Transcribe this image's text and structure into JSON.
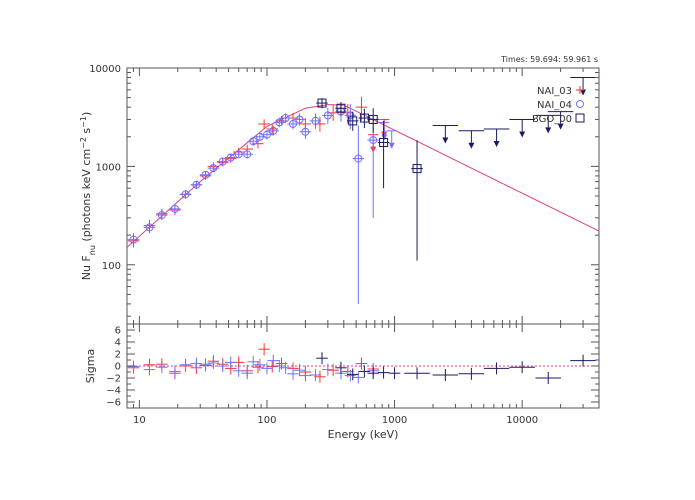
{
  "chart_data": [
    {
      "type": "scatter",
      "role": "spectrum",
      "annotation": "Times: 59.694: 59.961 s",
      "ylabel": "Nu F",
      "ylabel_sub": "nu",
      "ylabel_units": "(photons keV cm",
      "ylabel_exp1": "−2",
      "ylabel_mid": " s",
      "ylabel_exp2": "−1",
      "ylabel_end": ")",
      "xscale": "log",
      "yscale": "log",
      "xlim": [
        8,
        40000
      ],
      "ylim": [
        25,
        10000
      ],
      "x_ticks": [
        {
          "value": 10,
          "label": "10"
        },
        {
          "value": 100,
          "label": "100"
        },
        {
          "value": 1000,
          "label": "1000"
        },
        {
          "value": 10000,
          "label": "10000"
        }
      ],
      "y_ticks": [
        {
          "value": 100,
          "label": "100"
        },
        {
          "value": 1000,
          "label": "1000"
        },
        {
          "value": 10000,
          "label": "10000"
        }
      ],
      "legend_position": "top-right",
      "colors": {
        "NAI_03": "#ff3333",
        "NAI_04": "#6f6fff",
        "BGO_00": "#1a1a66",
        "model": "#e0407a"
      },
      "model": {
        "x": [
          8,
          30,
          100,
          200,
          300,
          400,
          40000
        ],
        "y": [
          150,
          700,
          2550,
          3900,
          4250,
          4200,
          220
        ]
      },
      "series": [
        {
          "name": "NAI_03",
          "marker": "plus",
          "points": [
            {
              "x": 9,
              "y": 175,
              "lo": 150,
              "hi": 205
            },
            {
              "x": 12,
              "y": 250,
              "lo": 215,
              "hi": 285
            },
            {
              "x": 15,
              "y": 330,
              "lo": 290,
              "hi": 370
            },
            {
              "x": 19,
              "y": 360,
              "lo": 320,
              "hi": 410
            },
            {
              "x": 23,
              "y": 520,
              "lo": 470,
              "hi": 570
            },
            {
              "x": 28,
              "y": 650,
              "lo": 590,
              "hi": 710
            },
            {
              "x": 33,
              "y": 800,
              "lo": 730,
              "hi": 880
            },
            {
              "x": 38,
              "y": 1000,
              "lo": 910,
              "hi": 1100
            },
            {
              "x": 45,
              "y": 1100,
              "lo": 1000,
              "hi": 1210
            },
            {
              "x": 52,
              "y": 1200,
              "lo": 1090,
              "hi": 1320
            },
            {
              "x": 60,
              "y": 1400,
              "lo": 1270,
              "hi": 1540
            },
            {
              "x": 70,
              "y": 1500,
              "lo": 1350,
              "hi": 1660
            },
            {
              "x": 85,
              "y": 1700,
              "lo": 1520,
              "hi": 1900
            },
            {
              "x": 95,
              "y": 2700,
              "lo": 2400,
              "hi": 3000
            },
            {
              "x": 110,
              "y": 2400,
              "lo": 2150,
              "hi": 2680
            },
            {
              "x": 130,
              "y": 2900,
              "lo": 2600,
              "hi": 3250
            },
            {
              "x": 160,
              "y": 3100,
              "lo": 2750,
              "hi": 3500
            },
            {
              "x": 200,
              "y": 2700,
              "lo": 2300,
              "hi": 3100
            },
            {
              "x": 260,
              "y": 2700,
              "lo": 2250,
              "hi": 3200
            },
            {
              "x": 330,
              "y": 3500,
              "lo": 2900,
              "hi": 4200
            },
            {
              "x": 430,
              "y": 3500,
              "lo": 2700,
              "hi": 4300
            },
            {
              "x": 550,
              "y": 4000,
              "lo": 2900,
              "hi": 5100
            }
          ],
          "upper_limits": [
            {
              "x": 680,
              "y": 2100
            },
            {
              "x": 830,
              "y": 3000
            }
          ]
        },
        {
          "name": "NAI_04",
          "marker": "circle",
          "points": [
            {
              "x": 9,
              "y": 180,
              "lo": 155,
              "hi": 210
            },
            {
              "x": 12,
              "y": 240,
              "lo": 210,
              "hi": 275
            },
            {
              "x": 15,
              "y": 320,
              "lo": 285,
              "hi": 360
            },
            {
              "x": 19,
              "y": 370,
              "lo": 330,
              "hi": 415
            },
            {
              "x": 23,
              "y": 520,
              "lo": 470,
              "hi": 575
            },
            {
              "x": 28,
              "y": 650,
              "lo": 590,
              "hi": 715
            },
            {
              "x": 33,
              "y": 820,
              "lo": 745,
              "hi": 900
            },
            {
              "x": 38,
              "y": 960,
              "lo": 875,
              "hi": 1050
            },
            {
              "x": 45,
              "y": 1120,
              "lo": 1020,
              "hi": 1230
            },
            {
              "x": 52,
              "y": 1230,
              "lo": 1120,
              "hi": 1350
            },
            {
              "x": 60,
              "y": 1330,
              "lo": 1210,
              "hi": 1460
            },
            {
              "x": 70,
              "y": 1330,
              "lo": 1200,
              "hi": 1470
            },
            {
              "x": 78,
              "y": 1800,
              "lo": 1620,
              "hi": 2000
            },
            {
              "x": 88,
              "y": 2000,
              "lo": 1800,
              "hi": 2220
            },
            {
              "x": 100,
              "y": 2100,
              "lo": 1880,
              "hi": 2340
            },
            {
              "x": 112,
              "y": 2300,
              "lo": 2050,
              "hi": 2580
            },
            {
              "x": 125,
              "y": 2800,
              "lo": 2500,
              "hi": 3120
            },
            {
              "x": 140,
              "y": 3100,
              "lo": 2750,
              "hi": 3480
            },
            {
              "x": 160,
              "y": 2700,
              "lo": 2380,
              "hi": 3050
            },
            {
              "x": 180,
              "y": 3000,
              "lo": 2600,
              "hi": 3450
            },
            {
              "x": 200,
              "y": 2250,
              "lo": 1900,
              "hi": 2650
            },
            {
              "x": 240,
              "y": 2900,
              "lo": 2400,
              "hi": 3450
            },
            {
              "x": 300,
              "y": 3300,
              "lo": 2700,
              "hi": 3950
            },
            {
              "x": 380,
              "y": 3600,
              "lo": 2850,
              "hi": 4450
            },
            {
              "x": 450,
              "y": 3300,
              "lo": 2400,
              "hi": 4300
            },
            {
              "x": 520,
              "y": 1200,
              "lo": 40,
              "hi": 2600
            },
            {
              "x": 680,
              "y": 1850,
              "lo": 300,
              "hi": 3300
            }
          ],
          "upper_limits": [
            {
              "x": 830,
              "y": 2800
            },
            {
              "x": 950,
              "y": 2300
            }
          ]
        },
        {
          "name": "BGO_00",
          "marker": "square",
          "points": [
            {
              "x": 270,
              "y": 4400,
              "lo": 3900,
              "hi": 4950
            },
            {
              "x": 380,
              "y": 3900,
              "lo": 3300,
              "hi": 4500
            },
            {
              "x": 470,
              "y": 2900,
              "lo": 2300,
              "hi": 3600
            },
            {
              "x": 580,
              "y": 3100,
              "lo": 2450,
              "hi": 3850
            },
            {
              "x": 680,
              "y": 3000,
              "lo": 2200,
              "hi": 3900
            },
            {
              "x": 820,
              "y": 1750,
              "lo": 600,
              "hi": 2900
            },
            {
              "x": 1500,
              "y": 950,
              "lo": 110,
              "hi": 1850
            }
          ],
          "upper_limits": [
            {
              "x": 2500,
              "y": 2600
            },
            {
              "x": 4000,
              "y": 2300
            },
            {
              "x": 6300,
              "y": 2400
            },
            {
              "x": 10000,
              "y": 3000
            },
            {
              "x": 16000,
              "y": 3300
            },
            {
              "x": 20000,
              "y": 3600
            },
            {
              "x": 30000,
              "y": 8000
            }
          ]
        }
      ]
    },
    {
      "type": "scatter",
      "role": "residuals",
      "xlabel": "Energy (keV)",
      "ylabel": "Sigma",
      "xscale": "log",
      "xlim": [
        8,
        40000
      ],
      "ylim": [
        -7,
        7
      ],
      "x_ticks": [
        {
          "value": 10,
          "label": "10"
        },
        {
          "value": 100,
          "label": "100"
        },
        {
          "value": 1000,
          "label": "1000"
        },
        {
          "value": 10000,
          "label": "10000"
        }
      ],
      "y_ticks": [
        {
          "value": -6,
          "label": "−6"
        },
        {
          "value": -4,
          "label": "−4"
        },
        {
          "value": -2,
          "label": "−2"
        },
        {
          "value": 0,
          "label": "0"
        },
        {
          "value": 2,
          "label": "2"
        },
        {
          "value": 4,
          "label": "4"
        },
        {
          "value": 6,
          "label": "6"
        }
      ],
      "series": [
        {
          "name": "NAI_03",
          "points": [
            {
              "x": 9,
              "y": -0.3
            },
            {
              "x": 12,
              "y": 0.2
            },
            {
              "x": 15,
              "y": 0.3
            },
            {
              "x": 19,
              "y": -1.2
            },
            {
              "x": 23,
              "y": 0.0
            },
            {
              "x": 28,
              "y": -0.3
            },
            {
              "x": 33,
              "y": 0.1
            },
            {
              "x": 38,
              "y": 0.8
            },
            {
              "x": 45,
              "y": 0.3
            },
            {
              "x": 52,
              "y": -0.4
            },
            {
              "x": 60,
              "y": 0.6
            },
            {
              "x": 70,
              "y": -0.8
            },
            {
              "x": 85,
              "y": -0.2
            },
            {
              "x": 95,
              "y": 2.8
            },
            {
              "x": 110,
              "y": -0.1
            },
            {
              "x": 130,
              "y": 0.4
            },
            {
              "x": 160,
              "y": -0.4
            },
            {
              "x": 200,
              "y": -1.0
            },
            {
              "x": 260,
              "y": -1.8
            },
            {
              "x": 330,
              "y": -0.7
            },
            {
              "x": 430,
              "y": -0.9
            },
            {
              "x": 550,
              "y": 0.4
            },
            {
              "x": 680,
              "y": -0.5
            }
          ]
        },
        {
          "name": "NAI_04",
          "points": [
            {
              "x": 9,
              "y": -0.1
            },
            {
              "x": 12,
              "y": -0.6
            },
            {
              "x": 15,
              "y": -0.2
            },
            {
              "x": 19,
              "y": -0.9
            },
            {
              "x": 23,
              "y": 0.2
            },
            {
              "x": 28,
              "y": 0.4
            },
            {
              "x": 33,
              "y": 0.3
            },
            {
              "x": 38,
              "y": 0.5
            },
            {
              "x": 45,
              "y": 0.0
            },
            {
              "x": 52,
              "y": 0.6
            },
            {
              "x": 60,
              "y": -0.8
            },
            {
              "x": 70,
              "y": -1.2
            },
            {
              "x": 78,
              "y": 0.7
            },
            {
              "x": 88,
              "y": 0.2
            },
            {
              "x": 100,
              "y": -0.4
            },
            {
              "x": 112,
              "y": 0.9
            },
            {
              "x": 125,
              "y": 0.0
            },
            {
              "x": 140,
              "y": -0.3
            },
            {
              "x": 160,
              "y": -1.3
            },
            {
              "x": 180,
              "y": -0.7
            },
            {
              "x": 200,
              "y": -1.6
            },
            {
              "x": 240,
              "y": -1.5
            },
            {
              "x": 300,
              "y": -0.6
            },
            {
              "x": 380,
              "y": -1.2
            },
            {
              "x": 450,
              "y": -1.6
            },
            {
              "x": 520,
              "y": -1.9
            },
            {
              "x": 680,
              "y": -0.8
            }
          ]
        },
        {
          "name": "BGO_00",
          "points": [
            {
              "x": 270,
              "y": 1.3
            },
            {
              "x": 380,
              "y": -0.3
            },
            {
              "x": 470,
              "y": -1.4
            },
            {
              "x": 580,
              "y": -0.9
            },
            {
              "x": 680,
              "y": -1.2
            },
            {
              "x": 820,
              "y": -1.1
            },
            {
              "x": 1000,
              "y": -1.2
            },
            {
              "x": 1500,
              "y": -1.2
            },
            {
              "x": 2500,
              "y": -1.5
            },
            {
              "x": 4000,
              "y": -1.3
            },
            {
              "x": 6300,
              "y": -0.4
            },
            {
              "x": 10000,
              "y": -0.2
            },
            {
              "x": 16000,
              "y": -2.0
            },
            {
              "x": 30000,
              "y": 0.9
            }
          ]
        }
      ]
    }
  ]
}
